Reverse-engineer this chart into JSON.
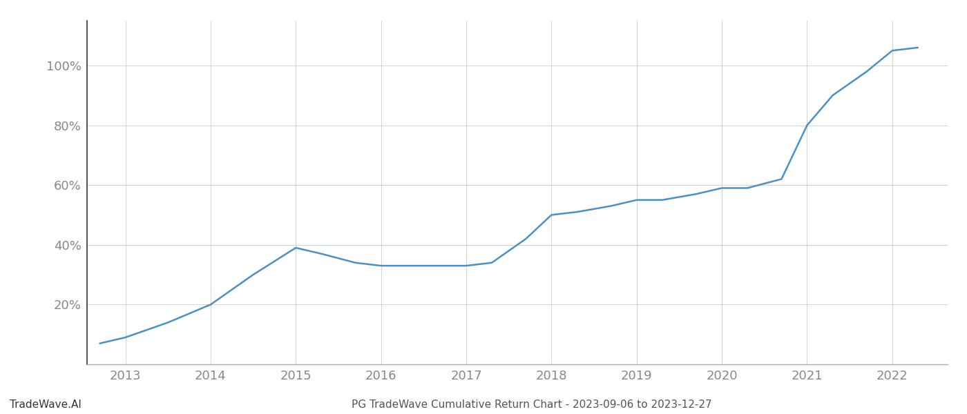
{
  "x_values": [
    2012.7,
    2013.0,
    2013.5,
    2014.0,
    2014.5,
    2015.0,
    2015.3,
    2015.7,
    2016.0,
    2016.5,
    2017.0,
    2017.3,
    2017.7,
    2018.0,
    2018.3,
    2018.7,
    2019.0,
    2019.3,
    2019.7,
    2020.0,
    2020.3,
    2020.7,
    2021.0,
    2021.3,
    2021.7,
    2022.0,
    2022.3
  ],
  "y_values": [
    0.07,
    0.09,
    0.14,
    0.2,
    0.3,
    0.39,
    0.37,
    0.34,
    0.33,
    0.33,
    0.33,
    0.34,
    0.42,
    0.5,
    0.51,
    0.53,
    0.55,
    0.55,
    0.57,
    0.59,
    0.59,
    0.62,
    0.8,
    0.9,
    0.98,
    1.05,
    1.06
  ],
  "line_color": "#4a90c4",
  "line_width": 1.8,
  "xlim": [
    2012.55,
    2022.65
  ],
  "ylim": [
    0.0,
    1.15
  ],
  "xticks": [
    2013,
    2014,
    2015,
    2016,
    2017,
    2018,
    2019,
    2020,
    2021,
    2022
  ],
  "yticks": [
    0.2,
    0.4,
    0.6,
    0.8,
    1.0
  ],
  "ytick_labels": [
    "20%",
    "40%",
    "60%",
    "80%",
    "100%"
  ],
  "grid_color": "#cccccc",
  "grid_linewidth": 0.6,
  "background_color": "#ffffff",
  "title": "PG TradeWave Cumulative Return Chart - 2023-09-06 to 2023-12-27",
  "title_fontsize": 11,
  "title_color": "#555555",
  "watermark": "TradeWave.AI",
  "watermark_fontsize": 11,
  "watermark_color": "#333333",
  "tick_color": "#888888",
  "tick_fontsize": 13,
  "left_spine_color": "#333333",
  "bottom_spine_color": "#aaaaaa"
}
